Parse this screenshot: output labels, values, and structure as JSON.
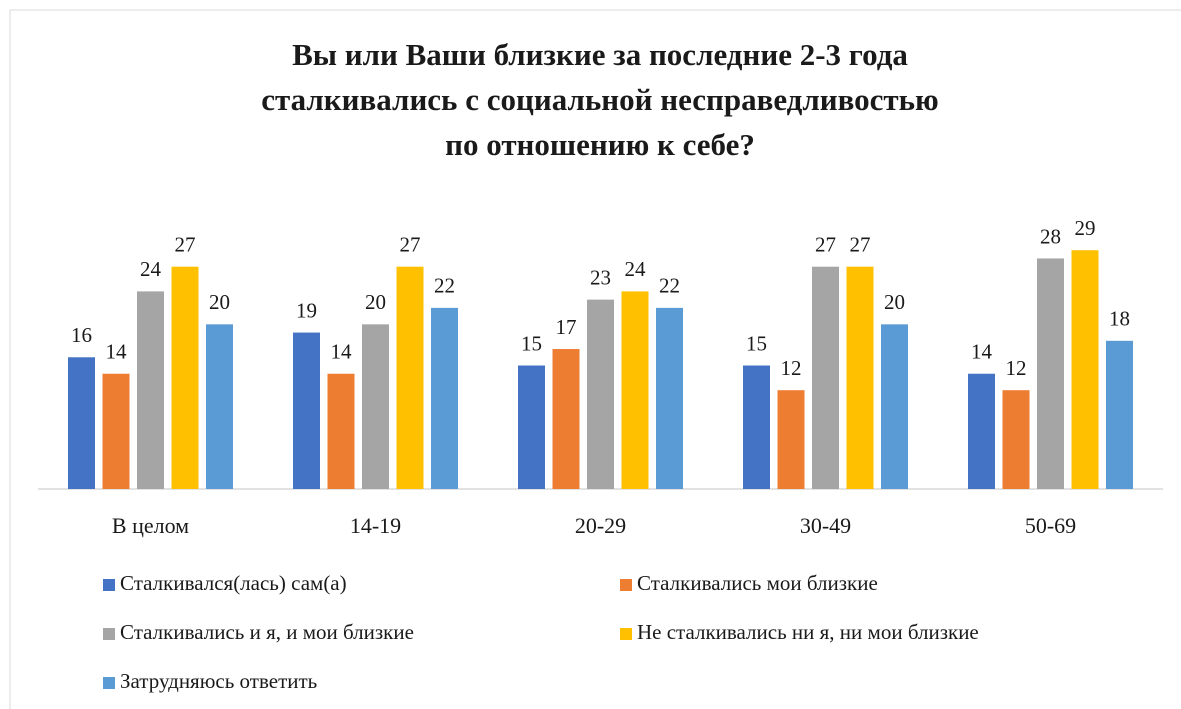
{
  "chart_data": {
    "type": "bar",
    "title": [
      "Вы или Ваши близкие за последние 2-3 года",
      "сталкивались с социальной несправедливостью",
      "по отношению к себе?"
    ],
    "categories": [
      "В целом",
      "14-19",
      "20-29",
      "30-49",
      "50-69"
    ],
    "series": [
      {
        "name": "Сталкивался(лась) сам(а)",
        "color": "#4472c4",
        "values": [
          16,
          19,
          15,
          15,
          14
        ]
      },
      {
        "name": "Сталкивались мои близкие",
        "color": "#ed7d31",
        "values": [
          14,
          14,
          17,
          12,
          12
        ]
      },
      {
        "name": "Сталкивались и я, и мои близкие",
        "color": "#a5a5a5",
        "values": [
          24,
          20,
          23,
          27,
          28
        ]
      },
      {
        "name": "Не сталкивались ни я, ни мои близкие",
        "color": "#ffc000",
        "values": [
          27,
          27,
          24,
          27,
          29
        ]
      },
      {
        "name": "Затрудняюсь ответить",
        "color": "#5b9bd5",
        "values": [
          20,
          22,
          22,
          20,
          18
        ]
      }
    ],
    "ylim": [
      0,
      30
    ]
  }
}
